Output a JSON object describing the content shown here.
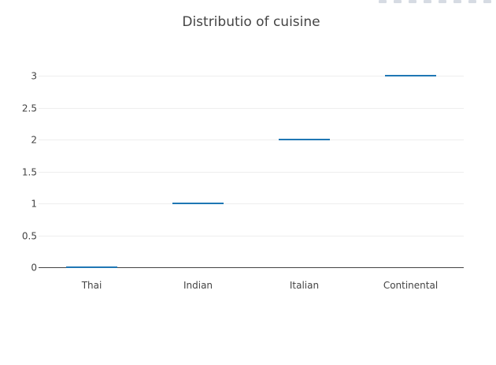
{
  "chart_data": {
    "type": "box",
    "title": "Distributio of cuisine",
    "xlabel": "",
    "ylabel": "",
    "categories": [
      "Thai",
      "Indian",
      "Italian",
      "Continental"
    ],
    "values": [
      0,
      1,
      2,
      3
    ],
    "ylim": [
      0,
      3
    ],
    "yticks": [
      0,
      0.5,
      1,
      1.5,
      2,
      2.5,
      3
    ],
    "ytick_labels": [
      "0",
      "0.5",
      "1",
      "1.5",
      "2",
      "2.5",
      "3"
    ],
    "grid": true,
    "colors": {
      "series": "#1f77b4",
      "grid": "#eeeeee",
      "axis": "#444444",
      "text": "#444444"
    }
  }
}
